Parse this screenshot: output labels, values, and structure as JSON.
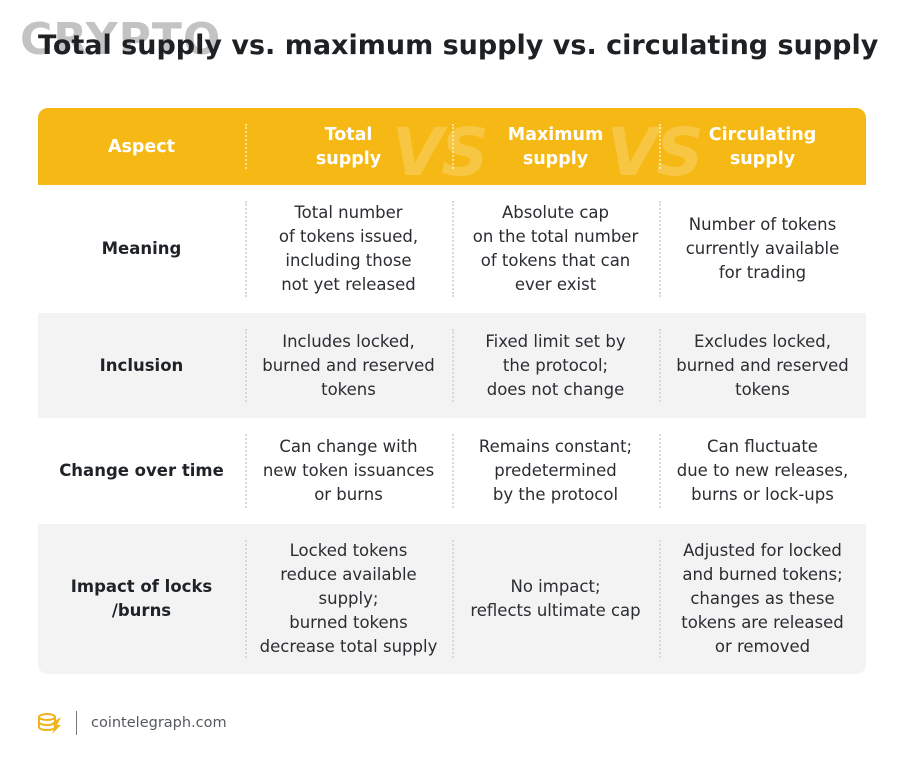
{
  "watermark": "CRYPTO",
  "title": "Total supply vs. maximum supply vs. circulating supply",
  "header": {
    "columns": [
      "Aspect",
      "Total\nsupply",
      "Maximum\nsupply",
      "Circulating\nsupply"
    ],
    "vs_mark": "VS"
  },
  "rows": [
    {
      "aspect": "Meaning",
      "total": "Total number\nof tokens issued,\nincluding those\nnot yet released",
      "maximum": "Absolute cap\non the total number\nof tokens that can\never exist",
      "circulating": "Number of tokens\ncurrently available\nfor trading"
    },
    {
      "aspect": "Inclusion",
      "total": "Includes locked,\nburned and reserved\ntokens",
      "maximum": "Fixed limit set by\nthe protocol;\ndoes not change",
      "circulating": "Excludes locked,\nburned and reserved\ntokens"
    },
    {
      "aspect": "Change over time",
      "total": "Can change with\nnew token issuances\nor burns",
      "maximum": "Remains constant;\npredetermined\nby the protocol",
      "circulating": "Can fluctuate\ndue to new releases,\nburns or lock-ups"
    },
    {
      "aspect": "Impact of locks\n/burns",
      "total": "Locked tokens\nreduce available\nsupply;\nburned tokens\ndecrease total supply",
      "maximum": "No impact;\nreflects ultimate cap",
      "circulating": "Adjusted for locked\nand burned tokens;\nchanges as these\ntokens are released\nor removed"
    }
  ],
  "footer": {
    "logo_icon": "cointelegraph-logo-icon",
    "site": "cointelegraph.com"
  },
  "colors": {
    "accent": "#f6b814",
    "row_alt": "#f3f3f3",
    "text": "#1f2328"
  }
}
